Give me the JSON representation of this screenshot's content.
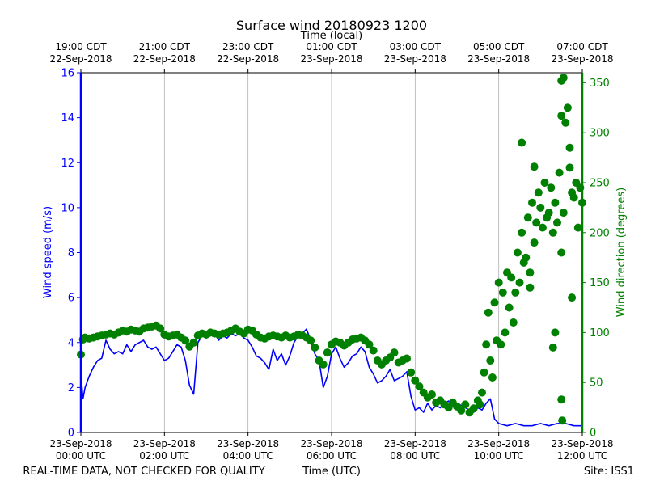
{
  "chart_data": {
    "type": "line",
    "title": "Surface wind 20180923 1200",
    "x_top_label": "Time (local)",
    "x_bottom_label": "Time (UTC)",
    "footer_left": "REAL-TIME DATA, NOT CHECKED FOR QUALITY",
    "footer_right": "Site: ISS1",
    "ylabel_left": "Wind speed (m/s)",
    "ylabel_right": "Wind direction (degrees)",
    "x_range_hours_utc": [
      0,
      12
    ],
    "ylim_left": [
      0,
      16
    ],
    "ylim_right": [
      0,
      360
    ],
    "left_ticks": [
      0,
      2,
      4,
      6,
      8,
      10,
      12,
      14,
      16
    ],
    "right_ticks": [
      0,
      50,
      100,
      150,
      200,
      250,
      300,
      350
    ],
    "bottom_ticks": [
      {
        "hour": 0,
        "date": "23-Sep-2018",
        "time": "00:00 UTC"
      },
      {
        "hour": 2,
        "date": "23-Sep-2018",
        "time": "02:00 UTC"
      },
      {
        "hour": 4,
        "date": "23-Sep-2018",
        "time": "04:00 UTC"
      },
      {
        "hour": 6,
        "date": "23-Sep-2018",
        "time": "06:00 UTC"
      },
      {
        "hour": 8,
        "date": "23-Sep-2018",
        "time": "08:00 UTC"
      },
      {
        "hour": 10,
        "date": "23-Sep-2018",
        "time": "10:00 UTC"
      },
      {
        "hour": 12,
        "date": "23-Sep-2018",
        "time": "12:00 UTC"
      }
    ],
    "top_ticks": [
      {
        "hour": 0,
        "time": "19:00 CDT",
        "date": "22-Sep-2018"
      },
      {
        "hour": 2,
        "time": "21:00 CDT",
        "date": "22-Sep-2018"
      },
      {
        "hour": 4,
        "time": "23:00 CDT",
        "date": "22-Sep-2018"
      },
      {
        "hour": 6,
        "time": "01:00 CDT",
        "date": "23-Sep-2018"
      },
      {
        "hour": 8,
        "time": "03:00 CDT",
        "date": "23-Sep-2018"
      },
      {
        "hour": 10,
        "time": "05:00 CDT",
        "date": "23-Sep-2018"
      },
      {
        "hour": 12,
        "time": "07:00 CDT",
        "date": "23-Sep-2018"
      }
    ],
    "series": [
      {
        "name": "Wind speed (m/s)",
        "axis": "left",
        "style": "line",
        "color": "#0000ff",
        "x": [
          0.0,
          0.05,
          0.1,
          0.2,
          0.3,
          0.4,
          0.5,
          0.6,
          0.7,
          0.8,
          0.9,
          1.0,
          1.1,
          1.2,
          1.3,
          1.4,
          1.5,
          1.6,
          1.7,
          1.8,
          1.9,
          2.0,
          2.1,
          2.2,
          2.3,
          2.4,
          2.5,
          2.6,
          2.7,
          2.8,
          2.9,
          3.0,
          3.1,
          3.2,
          3.3,
          3.4,
          3.5,
          3.6,
          3.7,
          3.8,
          3.9,
          4.0,
          4.1,
          4.2,
          4.3,
          4.4,
          4.5,
          4.6,
          4.7,
          4.8,
          4.9,
          5.0,
          5.1,
          5.2,
          5.3,
          5.4,
          5.5,
          5.6,
          5.7,
          5.8,
          5.9,
          6.0,
          6.1,
          6.2,
          6.3,
          6.4,
          6.5,
          6.6,
          6.7,
          6.8,
          6.9,
          7.0,
          7.1,
          7.2,
          7.3,
          7.4,
          7.5,
          7.6,
          7.7,
          7.8,
          7.9,
          8.0,
          8.1,
          8.2,
          8.3,
          8.4,
          8.5,
          8.6,
          8.7,
          8.8,
          8.9,
          9.0,
          9.1,
          9.2,
          9.3,
          9.4,
          9.5,
          9.6,
          9.7,
          9.8,
          9.9,
          10.0,
          10.2,
          10.4,
          10.6,
          10.8,
          11.0,
          11.2,
          11.4,
          11.6,
          11.8,
          12.0
        ],
        "values": [
          2.6,
          1.5,
          2.0,
          2.5,
          2.9,
          3.2,
          3.3,
          4.1,
          3.7,
          3.5,
          3.6,
          3.5,
          3.9,
          3.6,
          3.9,
          4.0,
          4.1,
          3.8,
          3.7,
          3.8,
          3.5,
          3.2,
          3.3,
          3.6,
          3.9,
          3.8,
          3.2,
          2.1,
          1.7,
          4.0,
          4.3,
          4.2,
          4.3,
          4.4,
          4.1,
          4.3,
          4.2,
          4.4,
          4.3,
          4.4,
          4.2,
          4.1,
          3.8,
          3.4,
          3.3,
          3.1,
          2.8,
          3.7,
          3.2,
          3.5,
          3.0,
          3.4,
          4.0,
          4.3,
          4.4,
          4.6,
          4.1,
          3.5,
          3.2,
          2.0,
          2.5,
          3.5,
          3.8,
          3.3,
          2.9,
          3.1,
          3.4,
          3.5,
          3.8,
          3.6,
          2.9,
          2.6,
          2.2,
          2.3,
          2.5,
          2.8,
          2.3,
          2.4,
          2.5,
          2.7,
          1.6,
          1.0,
          1.1,
          0.9,
          1.3,
          1.0,
          1.2,
          1.1,
          1.3,
          1.4,
          1.2,
          1.3,
          1.2,
          1.1,
          1.0,
          0.9,
          1.1,
          1.0,
          1.3,
          1.5,
          0.6,
          0.4,
          0.3,
          0.4,
          0.3,
          0.3,
          0.4,
          0.3,
          0.4,
          0.4,
          0.3,
          0.3
        ]
      },
      {
        "name": "Wind direction (degrees)",
        "axis": "right",
        "style": "scatter",
        "color": "#008000",
        "x": [
          0.0,
          0.05,
          0.1,
          0.2,
          0.3,
          0.4,
          0.5,
          0.6,
          0.7,
          0.8,
          0.9,
          1.0,
          1.1,
          1.2,
          1.3,
          1.4,
          1.5,
          1.6,
          1.7,
          1.8,
          1.9,
          2.0,
          2.1,
          2.2,
          2.3,
          2.4,
          2.5,
          2.6,
          2.7,
          2.8,
          2.9,
          3.0,
          3.1,
          3.2,
          3.3,
          3.4,
          3.5,
          3.6,
          3.7,
          3.8,
          3.9,
          4.0,
          4.1,
          4.2,
          4.3,
          4.4,
          4.5,
          4.6,
          4.7,
          4.8,
          4.9,
          5.0,
          5.1,
          5.2,
          5.3,
          5.4,
          5.5,
          5.6,
          5.7,
          5.8,
          5.9,
          6.0,
          6.1,
          6.2,
          6.3,
          6.4,
          6.5,
          6.6,
          6.7,
          6.8,
          6.9,
          7.0,
          7.1,
          7.2,
          7.3,
          7.4,
          7.5,
          7.6,
          7.7,
          7.8,
          7.9,
          8.0,
          8.1,
          8.2,
          8.3,
          8.4,
          8.5,
          8.6,
          8.7,
          8.8,
          8.9,
          9.0,
          9.1,
          9.2,
          9.3,
          9.4,
          9.5,
          9.55,
          9.6,
          9.65,
          9.7,
          9.75,
          9.8,
          9.85,
          9.9,
          9.95,
          10.0,
          10.05,
          10.1,
          10.15,
          10.2,
          10.25,
          10.3,
          10.35,
          10.4,
          10.45,
          10.5,
          10.55,
          10.6,
          10.65,
          10.7,
          10.75,
          10.8,
          10.85,
          10.9,
          10.95,
          11.0,
          11.05,
          11.1,
          11.15,
          11.2,
          11.25,
          11.3,
          11.35,
          11.4,
          11.45,
          11.5,
          11.55,
          11.6,
          11.65,
          11.7,
          11.75,
          11.8,
          11.85,
          11.9,
          11.95,
          12.0
        ],
        "values": [
          78,
          93,
          95,
          94,
          95,
          96,
          97,
          98,
          99,
          98,
          100,
          102,
          101,
          103,
          102,
          101,
          104,
          105,
          106,
          107,
          104,
          98,
          96,
          97,
          98,
          95,
          92,
          86,
          90,
          97,
          99,
          98,
          100,
          99,
          98,
          99,
          100,
          102,
          104,
          101,
          99,
          103,
          102,
          98,
          95,
          94,
          96,
          97,
          96,
          95,
          97,
          95,
          96,
          98,
          97,
          95,
          92,
          85,
          72,
          68,
          80,
          88,
          91,
          90,
          87,
          90,
          93,
          94,
          95,
          92,
          88,
          82,
          72,
          68,
          72,
          75,
          80,
          70,
          72,
          74,
          60,
          52,
          46,
          40,
          35,
          38,
          30,
          32,
          28,
          25,
          30,
          26,
          22,
          28,
          20,
          24,
          32,
          28,
          40,
          60,
          88,
          120,
          72,
          55,
          130,
          92,
          150,
          88,
          140,
          100,
          160,
          125,
          155,
          110,
          140,
          180,
          150,
          200,
          170,
          175,
          215,
          160,
          230,
          190,
          210,
          240,
          225,
          205,
          250,
          215,
          220,
          245,
          200,
          230,
          210,
          260,
          180,
          220,
          310,
          325,
          265,
          240,
          235,
          250,
          205,
          245,
          230
        ],
        "outliers": [
          {
            "x": 10.55,
            "y": 290
          },
          {
            "x": 10.85,
            "y": 266
          },
          {
            "x": 11.5,
            "y": 352
          },
          {
            "x": 11.55,
            "y": 355
          },
          {
            "x": 11.5,
            "y": 317
          },
          {
            "x": 11.7,
            "y": 285
          },
          {
            "x": 11.5,
            "y": 33
          },
          {
            "x": 11.52,
            "y": 12
          },
          {
            "x": 11.75,
            "y": 135
          },
          {
            "x": 11.3,
            "y": 85
          },
          {
            "x": 11.35,
            "y": 100
          },
          {
            "x": 10.75,
            "y": 145
          }
        ]
      }
    ]
  }
}
